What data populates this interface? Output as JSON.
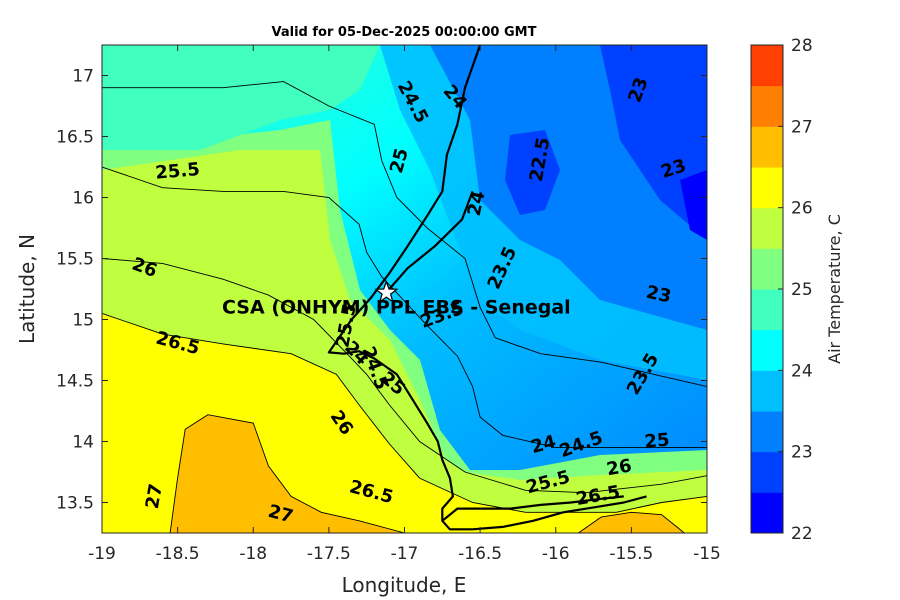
{
  "chart_data": {
    "type": "heatmap",
    "title": "Valid for 05-Dec-2025 00:00:00 GMT",
    "xlabel": "Longitude, E",
    "ylabel": "Latitude, N",
    "xlim": [
      -19,
      -15
    ],
    "ylim": [
      13.25,
      17.25
    ],
    "x_ticks": [
      "-19",
      "-18.5",
      "-18",
      "-17.5",
      "-17",
      "-16.5",
      "-16",
      "-15.5",
      "-15"
    ],
    "y_ticks": [
      "13.5",
      "14",
      "14.5",
      "15",
      "15.5",
      "16",
      "16.5",
      "17"
    ],
    "colorbar": {
      "label": "Air Temperature, C",
      "range": [
        22,
        28
      ],
      "ticks": [
        "22",
        "23",
        "24",
        "25",
        "26",
        "27",
        "28"
      ],
      "colors": [
        "#0000FF",
        "#0040FF",
        "#0080FF",
        "#00BFFF",
        "#00FFFF",
        "#40FFBF",
        "#80FF80",
        "#BFFF40",
        "#FFFF00",
        "#FFBF00",
        "#FF8000",
        "#FF4000"
      ]
    },
    "station": {
      "name": "CSA (ONHYM) PPL EBS - Senegal",
      "lon": -17.12,
      "lat": 15.22
    },
    "contour_labels": [
      {
        "text": "24.5",
        "lon": -16.95,
        "lat": 16.78,
        "rot": 62
      },
      {
        "text": "24",
        "lon": -16.67,
        "lat": 16.82,
        "rot": 50
      },
      {
        "text": "23",
        "lon": -15.45,
        "lat": 16.88,
        "rot": -70
      },
      {
        "text": "22.5",
        "lon": -16.1,
        "lat": 16.31,
        "rot": -80
      },
      {
        "text": "23",
        "lon": -15.22,
        "lat": 16.23,
        "rot": -18
      },
      {
        "text": "25",
        "lon": -17.03,
        "lat": 16.3,
        "rot": -75
      },
      {
        "text": "25.5",
        "lon": -18.5,
        "lat": 16.21,
        "rot": -5
      },
      {
        "text": "24",
        "lon": -16.52,
        "lat": 15.95,
        "rot": -78
      },
      {
        "text": "23.5",
        "lon": -16.35,
        "lat": 15.42,
        "rot": -65
      },
      {
        "text": "23",
        "lon": -15.32,
        "lat": 15.2,
        "rot": 12
      },
      {
        "text": "26",
        "lon": -18.72,
        "lat": 15.42,
        "rot": 20
      },
      {
        "text": "23.5",
        "lon": -16.75,
        "lat": 15.03,
        "rot": -20
      },
      {
        "text": "25.5",
        "lon": -17.38,
        "lat": 14.95,
        "rot": -80
      },
      {
        "text": "26.5",
        "lon": -18.5,
        "lat": 14.8,
        "rot": 15
      },
      {
        "text": "24",
        "lon": -17.32,
        "lat": 14.72,
        "rot": 45
      },
      {
        "text": "24.5",
        "lon": -17.2,
        "lat": 14.6,
        "rot": 70
      },
      {
        "text": "25",
        "lon": -17.08,
        "lat": 14.47,
        "rot": 40
      },
      {
        "text": "23.5",
        "lon": -15.42,
        "lat": 14.55,
        "rot": -60
      },
      {
        "text": "26",
        "lon": -17.42,
        "lat": 14.15,
        "rot": 55
      },
      {
        "text": "24",
        "lon": -16.08,
        "lat": 13.97,
        "rot": -15
      },
      {
        "text": "24.5",
        "lon": -15.83,
        "lat": 13.97,
        "rot": -20
      },
      {
        "text": "25",
        "lon": -15.33,
        "lat": 14.0,
        "rot": -5
      },
      {
        "text": "26",
        "lon": -15.58,
        "lat": 13.78,
        "rot": -10
      },
      {
        "text": "25.5",
        "lon": -16.05,
        "lat": 13.66,
        "rot": -15
      },
      {
        "text": "26.5",
        "lon": -15.72,
        "lat": 13.55,
        "rot": -10
      },
      {
        "text": "26.5",
        "lon": -17.22,
        "lat": 13.58,
        "rot": 15
      },
      {
        "text": "27",
        "lon": -18.65,
        "lat": 13.55,
        "rot": -80
      },
      {
        "text": "27",
        "lon": -17.82,
        "lat": 13.4,
        "rot": 15
      }
    ],
    "contour_bands": [
      {
        "value": 25.75,
        "points": [
          [
            -19,
            15.5
          ],
          [
            -18.6,
            15.46
          ],
          [
            -18.2,
            15.33
          ],
          [
            -17.9,
            15.2
          ],
          [
            -17.6,
            15.0
          ],
          [
            -17.38,
            14.72
          ],
          [
            -17.25,
            14.55
          ],
          [
            -17.1,
            14.3
          ],
          [
            -16.9,
            14.0
          ],
          [
            -16.6,
            13.75
          ],
          [
            -16.2,
            13.6
          ],
          [
            -15.8,
            13.58
          ],
          [
            -15.3,
            13.65
          ],
          [
            -15,
            13.72
          ],
          [
            -15,
            13.25
          ],
          [
            -19,
            13.25
          ]
        ]
      },
      {
        "value": 26.25,
        "points": [
          [
            -19,
            15.05
          ],
          [
            -18.6,
            14.88
          ],
          [
            -18.2,
            14.8
          ],
          [
            -17.75,
            14.72
          ],
          [
            -17.45,
            14.55
          ],
          [
            -17.3,
            14.3
          ],
          [
            -17.1,
            13.98
          ],
          [
            -16.9,
            13.7
          ],
          [
            -16.55,
            13.5
          ],
          [
            -16.2,
            13.42
          ],
          [
            -15.9,
            13.42
          ],
          [
            -15.6,
            13.42
          ],
          [
            -15.3,
            13.5
          ],
          [
            -15,
            13.55
          ],
          [
            -15,
            13.25
          ],
          [
            -19,
            13.25
          ]
        ]
      },
      {
        "value": 26.75,
        "points": [
          [
            -18.55,
            13.25
          ],
          [
            -18.5,
            13.7
          ],
          [
            -18.45,
            14.1
          ],
          [
            -18.3,
            14.22
          ],
          [
            -18.0,
            14.15
          ],
          [
            -17.9,
            13.8
          ],
          [
            -17.75,
            13.55
          ],
          [
            -17.55,
            13.42
          ],
          [
            -17.3,
            13.35
          ],
          [
            -17.0,
            13.25
          ]
        ]
      },
      {
        "value": 26.75,
        "points": [
          [
            -15.85,
            13.25
          ],
          [
            -15.7,
            13.38
          ],
          [
            -15.5,
            13.42
          ],
          [
            -15.3,
            13.4
          ],
          [
            -15.2,
            13.3
          ],
          [
            -15.15,
            13.25
          ]
        ]
      }
    ],
    "contour_lines": [
      [
        [
          -19,
          16.9
        ],
        [
          -18.6,
          16.9
        ],
        [
          -18.2,
          16.9
        ],
        [
          -17.8,
          16.95
        ],
        [
          -17.5,
          16.75
        ],
        [
          -17.2,
          16.6
        ],
        [
          -17.15,
          16.3
        ],
        [
          -17.05,
          16.0
        ],
        [
          -16.85,
          15.75
        ],
        [
          -16.6,
          15.5
        ],
        [
          -16.5,
          15.1
        ],
        [
          -16.4,
          14.85
        ],
        [
          -16.1,
          14.72
        ],
        [
          -15.7,
          14.65
        ],
        [
          -15.35,
          14.55
        ],
        [
          -15,
          14.45
        ]
      ],
      [
        [
          -19,
          16.25
        ],
        [
          -18.6,
          16.08
        ],
        [
          -18.2,
          16.05
        ],
        [
          -17.8,
          16.05
        ],
        [
          -17.5,
          16.0
        ],
        [
          -17.3,
          15.78
        ],
        [
          -17.25,
          15.55
        ],
        [
          -17.15,
          15.35
        ],
        [
          -17.0,
          15.15
        ],
        [
          -16.85,
          14.95
        ],
        [
          -16.65,
          14.7
        ],
        [
          -16.55,
          14.45
        ],
        [
          -16.5,
          14.2
        ],
        [
          -16.35,
          14.05
        ],
        [
          -16.0,
          13.95
        ],
        [
          -15.6,
          13.95
        ],
        [
          -15.2,
          13.95
        ],
        [
          -15,
          13.95
        ]
      ],
      [
        [
          -19,
          15.5
        ],
        [
          -18.6,
          15.46
        ],
        [
          -18.2,
          15.33
        ],
        [
          -17.9,
          15.2
        ],
        [
          -17.6,
          15.0
        ],
        [
          -17.38,
          14.72
        ],
        [
          -17.25,
          14.55
        ],
        [
          -17.1,
          14.3
        ],
        [
          -16.9,
          14.0
        ],
        [
          -16.6,
          13.75
        ],
        [
          -16.2,
          13.6
        ],
        [
          -15.8,
          13.58
        ],
        [
          -15.3,
          13.65
        ],
        [
          -15,
          13.72
        ]
      ],
      [
        [
          -19,
          15.05
        ],
        [
          -18.6,
          14.88
        ],
        [
          -18.2,
          14.8
        ],
        [
          -17.75,
          14.72
        ],
        [
          -17.45,
          14.55
        ],
        [
          -17.3,
          14.3
        ],
        [
          -17.1,
          13.98
        ],
        [
          -16.9,
          13.7
        ],
        [
          -16.55,
          13.5
        ],
        [
          -16.2,
          13.42
        ],
        [
          -15.9,
          13.42
        ],
        [
          -15.6,
          13.42
        ],
        [
          -15.3,
          13.5
        ],
        [
          -15,
          13.55
        ]
      ],
      [
        [
          -18.55,
          13.25
        ],
        [
          -18.5,
          13.7
        ],
        [
          -18.45,
          14.1
        ],
        [
          -18.3,
          14.22
        ],
        [
          -18.0,
          14.15
        ],
        [
          -17.9,
          13.8
        ],
        [
          -17.75,
          13.55
        ],
        [
          -17.55,
          13.42
        ],
        [
          -17.3,
          13.35
        ],
        [
          -17.0,
          13.25
        ]
      ],
      [
        [
          -15.85,
          13.25
        ],
        [
          -15.7,
          13.38
        ],
        [
          -15.5,
          13.42
        ],
        [
          -15.3,
          13.4
        ],
        [
          -15.2,
          13.3
        ],
        [
          -15.15,
          13.25
        ]
      ]
    ],
    "coastline": [
      [
        [
          -16.5,
          17.25
        ],
        [
          -16.6,
          16.9
        ],
        [
          -16.65,
          16.6
        ],
        [
          -16.72,
          16.35
        ],
        [
          -16.75,
          16.05
        ],
        [
          -16.85,
          15.85
        ],
        [
          -16.98,
          15.6
        ],
        [
          -17.1,
          15.38
        ],
        [
          -17.22,
          15.18
        ],
        [
          -17.35,
          15.0
        ],
        [
          -17.45,
          14.82
        ],
        [
          -17.5,
          14.73
        ],
        [
          -17.4,
          14.72
        ],
        [
          -17.3,
          14.74
        ],
        [
          -17.2,
          14.68
        ],
        [
          -17.05,
          14.55
        ],
        [
          -16.95,
          14.35
        ],
        [
          -16.85,
          14.15
        ],
        [
          -16.78,
          14.0
        ],
        [
          -16.75,
          13.85
        ],
        [
          -16.7,
          13.7
        ],
        [
          -16.68,
          13.55
        ],
        [
          -16.75,
          13.45
        ],
        [
          -16.75,
          13.35
        ],
        [
          -16.7,
          13.28
        ],
        [
          -16.55,
          13.28
        ],
        [
          -16.35,
          13.3
        ],
        [
          -16.15,
          13.35
        ],
        [
          -15.95,
          13.42
        ],
        [
          -15.75,
          13.46
        ],
        [
          -15.55,
          13.5
        ],
        [
          -15.4,
          13.55
        ]
      ],
      [
        [
          -16.55,
          16.05
        ],
        [
          -16.62,
          15.82
        ],
        [
          -16.8,
          15.6
        ],
        [
          -16.98,
          15.42
        ],
        [
          -17.1,
          15.25
        ]
      ],
      [
        [
          -16.75,
          13.35
        ],
        [
          -16.65,
          13.45
        ],
        [
          -16.5,
          13.45
        ],
        [
          -16.3,
          13.45
        ],
        [
          -16.1,
          13.48
        ],
        [
          -15.9,
          13.5
        ],
        [
          -15.7,
          13.53
        ],
        [
          -15.55,
          13.55
        ]
      ]
    ]
  }
}
